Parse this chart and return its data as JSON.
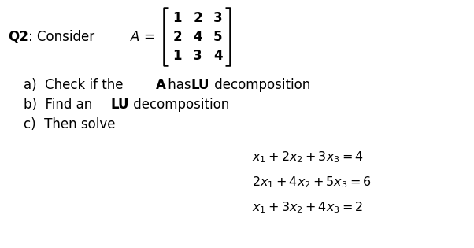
{
  "background_color": "#ffffff",
  "figsize": [
    6.02,
    3.15
  ],
  "dpi": 100,
  "fontsize_main": 12,
  "fontsize_eq": 11.5,
  "matrix_rows": [
    [
      "1",
      "2",
      "3"
    ],
    [
      "2",
      "4",
      "5"
    ],
    [
      "1",
      "3",
      "4"
    ]
  ]
}
